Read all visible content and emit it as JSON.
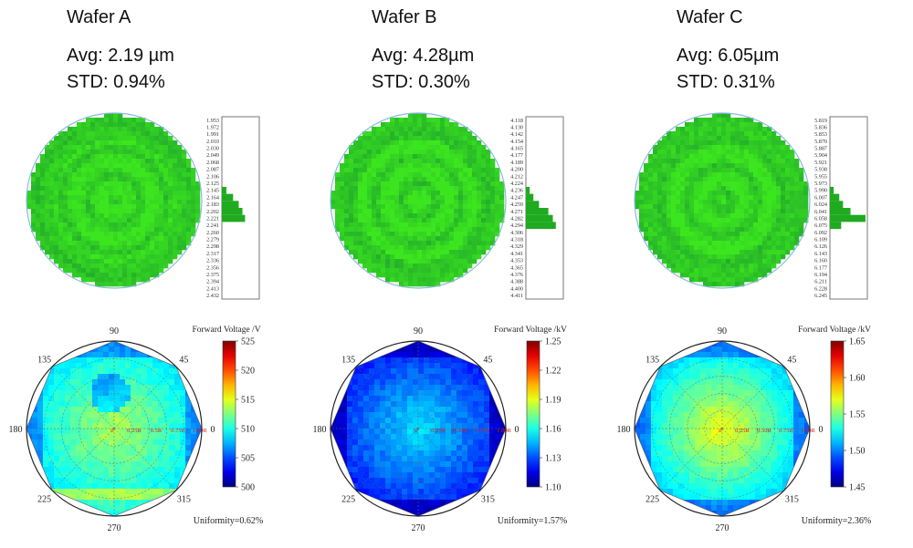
{
  "chart_data": [
    {
      "type": "heatmap",
      "title": "Wafer A",
      "avg_label": "Avg: 2.19 µm",
      "std_label": "STD: 0.94%",
      "histogram": {
        "ticks": [
          "1.953",
          "1.972",
          "1.991",
          "2.010",
          "2.030",
          "2.049",
          "2.068",
          "2.087",
          "2.106",
          "2.125",
          "2.145",
          "2.164",
          "2.183",
          "2.202",
          "2.221",
          "2.241",
          "2.260",
          "2.279",
          "2.298",
          "2.317",
          "2.336",
          "2.356",
          "2.375",
          "2.394",
          "2.413",
          "2.432"
        ],
        "bars": [
          {
            "index": 10,
            "value": 0.12
          },
          {
            "index": 11,
            "value": 0.3
          },
          {
            "index": 12,
            "value": 0.45
          },
          {
            "index": 13,
            "value": 0.55
          },
          {
            "index": 14,
            "value": 0.62
          }
        ]
      },
      "polar": {
        "legend_title": "Forward Voltage /V",
        "scale": [
          500,
          525
        ],
        "colorbar_ticks": [
          "525",
          "520",
          "515",
          "510",
          "505",
          "500"
        ],
        "angle_labels": [
          "90",
          "45",
          "0",
          "315",
          "270",
          "225",
          "180",
          "135"
        ],
        "radial_labels": [
          "0",
          "0.25R",
          "0.5R",
          "0.75R",
          "1.00R"
        ],
        "uniformity": "Uniformity=0.62%"
      }
    },
    {
      "type": "heatmap",
      "title": "Wafer B",
      "avg_label": "Avg: 4.28µm",
      "std_label": "STD: 0.30%",
      "histogram": {
        "ticks": [
          "4.118",
          "4.130",
          "4.142",
          "4.154",
          "4.165",
          "4.177",
          "4.189",
          "4.200",
          "4.212",
          "4.224",
          "4.236",
          "4.247",
          "4.259",
          "4.271",
          "4.282",
          "4.294",
          "4.306",
          "4.318",
          "4.329",
          "4.341",
          "4.353",
          "4.365",
          "4.376",
          "4.388",
          "4.400",
          "4.411"
        ],
        "bars": [
          {
            "index": 10,
            "value": 0.1
          },
          {
            "index": 11,
            "value": 0.2
          },
          {
            "index": 12,
            "value": 0.35
          },
          {
            "index": 13,
            "value": 0.6
          },
          {
            "index": 14,
            "value": 0.72
          },
          {
            "index": 15,
            "value": 0.8
          }
        ]
      },
      "polar": {
        "legend_title": "Forward Voltage /kV",
        "scale": [
          1.1,
          1.25
        ],
        "colorbar_ticks": [
          "1.25",
          "1.22",
          "1.19",
          "1.16",
          "1.13",
          "1.10"
        ],
        "angle_labels": [
          "90",
          "45",
          "0",
          "315",
          "270",
          "225",
          "180",
          "135"
        ],
        "radial_labels": [
          "0",
          "0.25R",
          "0.50R",
          "0.75R",
          "1.00R"
        ],
        "uniformity": "Uniformity=1.57%"
      }
    },
    {
      "type": "heatmap",
      "title": "Wafer C",
      "avg_label": "Avg: 6.05µm",
      "std_label": "STD: 0.31%",
      "histogram": {
        "ticks": [
          "5.819",
          "5.836",
          "5.853",
          "5.870",
          "5.887",
          "5.904",
          "5.921",
          "5.938",
          "5.955",
          "5.973",
          "5.990",
          "6.007",
          "6.024",
          "6.041",
          "6.058",
          "6.075",
          "6.092",
          "6.109",
          "6.126",
          "6.143",
          "6.160",
          "6.177",
          "6.194",
          "6.211",
          "6.228",
          "6.245"
        ],
        "bars": [
          {
            "index": 10,
            "value": 0.1
          },
          {
            "index": 11,
            "value": 0.25
          },
          {
            "index": 12,
            "value": 0.35
          },
          {
            "index": 13,
            "value": 0.55
          },
          {
            "index": 14,
            "value": 0.95
          },
          {
            "index": 15,
            "value": 0.3
          }
        ]
      },
      "polar": {
        "legend_title": "Forward Voltage /kV",
        "scale": [
          1.45,
          1.65
        ],
        "colorbar_ticks": [
          "1.65",
          "1.60",
          "1.55",
          "1.50",
          "1.45"
        ],
        "angle_labels": [
          "90",
          "45",
          "0",
          "315",
          "270",
          "225",
          "180",
          "135"
        ],
        "radial_labels": [
          "0",
          "0.25R",
          "0.50R",
          "0.75R",
          "1.00R"
        ],
        "uniformity": "Uniformity=2.36%"
      }
    }
  ],
  "colors": {
    "wafer_green": "#2ecc1f",
    "wafer_dark": "#1f7a3a",
    "wafer_outline": "#8ab9e0",
    "hist_bar": "#1faa1f",
    "tick_red": "#d02020"
  }
}
